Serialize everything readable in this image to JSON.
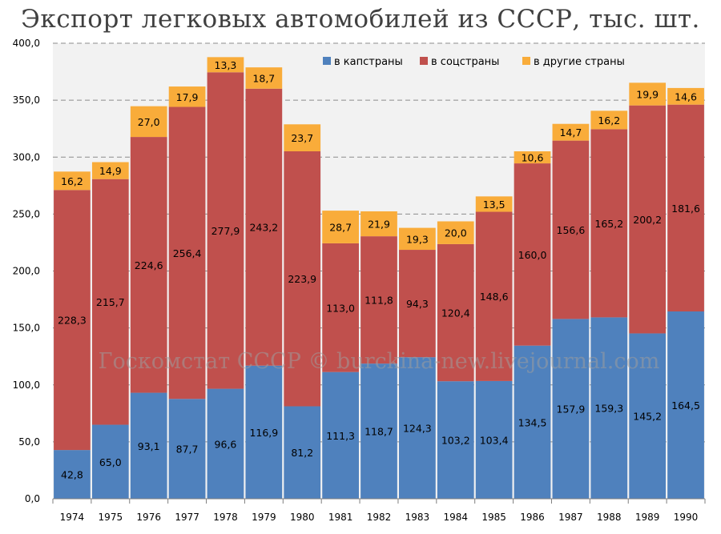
{
  "chart_data": {
    "type": "bar",
    "stacked": true,
    "title": "Экспорт легковых автомобилей из СССР, тыс. шт.",
    "watermark": "Госкомстат СССР © burckina-new.livejournal.com",
    "categories": [
      "1974",
      "1975",
      "1976",
      "1977",
      "1978",
      "1979",
      "1980",
      "1981",
      "1982",
      "1983",
      "1984",
      "1985",
      "1986",
      "1987",
      "1988",
      "1989",
      "1990"
    ],
    "series": [
      {
        "name": "в капстраны",
        "color": "#4f81bd",
        "values": [
          42.8,
          65.0,
          93.1,
          87.7,
          96.6,
          116.9,
          81.2,
          111.3,
          118.7,
          124.3,
          103.2,
          103.4,
          134.5,
          157.9,
          159.3,
          145.2,
          164.5
        ],
        "labels": [
          "42,8",
          "65,0",
          "93,1",
          "87,7",
          "96,6",
          "116,9",
          "81,2",
          "111,3",
          "118,7",
          "124,3",
          "103,2",
          "103,4",
          "134,5",
          "157,9",
          "159,3",
          "145,2",
          "164,5"
        ]
      },
      {
        "name": "в соцстраны",
        "color": "#c0504d",
        "values": [
          228.3,
          215.7,
          224.6,
          256.4,
          277.9,
          243.2,
          223.9,
          113.0,
          111.8,
          94.3,
          120.4,
          148.6,
          160.0,
          156.6,
          165.2,
          200.2,
          181.6
        ],
        "labels": [
          "228,3",
          "215,7",
          "224,6",
          "256,4",
          "277,9",
          "243,2",
          "223,9",
          "113,0",
          "111,8",
          "94,3",
          "120,4",
          "148,6",
          "160,0",
          "156,6",
          "165,2",
          "200,2",
          "181,6"
        ]
      },
      {
        "name": "в другие страны",
        "color": "#f9ac3a",
        "values": [
          16.2,
          14.9,
          27.0,
          17.9,
          13.3,
          18.7,
          23.7,
          28.7,
          21.9,
          19.3,
          20.0,
          13.5,
          10.6,
          14.7,
          16.2,
          19.9,
          14.6
        ],
        "labels": [
          "16,2",
          "14,9",
          "27,0",
          "17,9",
          "13,3",
          "18,7",
          "23,7",
          "28,7",
          "21,9",
          "19,3",
          "20,0",
          "13,5",
          "10,6",
          "14,7",
          "16,2",
          "19,9",
          "14,6"
        ]
      }
    ],
    "ylim": [
      0,
      400
    ],
    "yticks": [
      0,
      50,
      100,
      150,
      200,
      250,
      300,
      350,
      400
    ],
    "ytick_labels": [
      "0,0",
      "50,0",
      "100,0",
      "150,0",
      "200,0",
      "250,0",
      "300,0",
      "350,0",
      "400,0"
    ],
    "xlabel": "",
    "ylabel": "",
    "grid": true,
    "legend_position": "top-right"
  }
}
